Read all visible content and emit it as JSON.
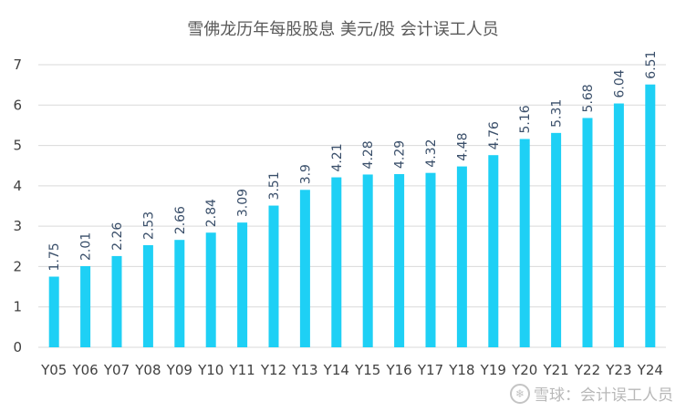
{
  "chart_data": {
    "type": "bar",
    "title": "雪佛龙历年每股股息 美元/股 会计误工人员",
    "xlabel": "",
    "ylabel": "",
    "categories": [
      "Y05",
      "Y06",
      "Y07",
      "Y08",
      "Y09",
      "Y10",
      "Y11",
      "Y12",
      "Y13",
      "Y14",
      "Y15",
      "Y16",
      "Y17",
      "Y18",
      "Y19",
      "Y20",
      "Y21",
      "Y22",
      "Y23",
      "Y24"
    ],
    "values": [
      1.75,
      2.01,
      2.26,
      2.53,
      2.66,
      2.84,
      3.09,
      3.51,
      3.9,
      4.21,
      4.28,
      4.29,
      4.32,
      4.48,
      4.76,
      5.16,
      5.31,
      5.68,
      6.04,
      6.51
    ],
    "data_labels": [
      "1.75",
      "2.01",
      "2.26",
      "2.53",
      "2.66",
      "2.84",
      "3.09",
      "3.51",
      "3.9",
      "4.21",
      "4.28",
      "4.29",
      "4.32",
      "4.48",
      "4.76",
      "5.16",
      "5.31",
      "5.68",
      "6.04",
      "6.51"
    ],
    "y_ticks": [
      "0",
      "1",
      "2",
      "3",
      "4",
      "5",
      "6",
      "7"
    ],
    "ylim": [
      0,
      7
    ],
    "grid": true,
    "legend": "none",
    "bar_color": "#1ED0F5",
    "grid_color": "#D9D9D9"
  },
  "watermark": {
    "logo_glyph": "❄",
    "text": "雪球：会计误工人员"
  }
}
